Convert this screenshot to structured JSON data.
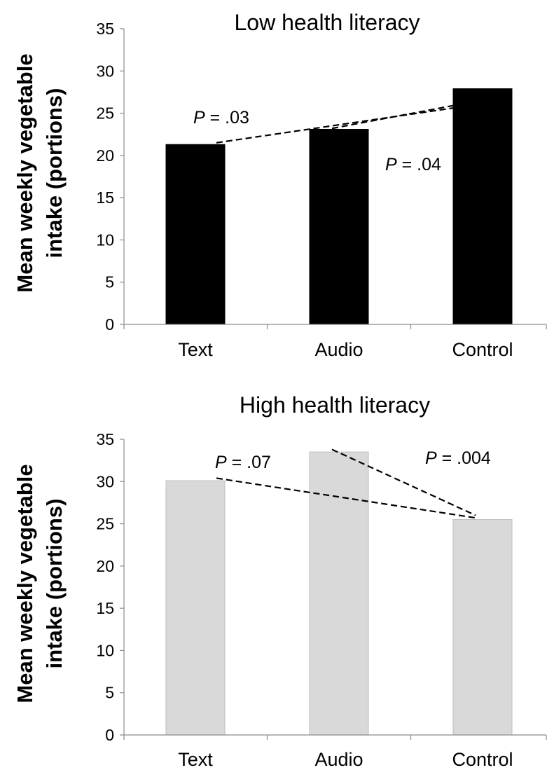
{
  "chart_data": [
    {
      "type": "bar",
      "title": "Low health literacy",
      "ylabel": "Mean weekly vegetable intake (portions)",
      "ylabel_lines": [
        "Mean weekly vegetable",
        "intake (portions)"
      ],
      "categories": [
        "Text",
        "Audio",
        "Control"
      ],
      "values": [
        21.3,
        23.1,
        27.9
      ],
      "ylim": [
        0,
        35
      ],
      "yticks": [
        0,
        5,
        10,
        15,
        20,
        25,
        30,
        35
      ],
      "bar_color": "#000000",
      "bar_edge_color": "#000000",
      "grid": false,
      "annotations": [
        {
          "label_prefix": "P",
          "label_value": " = .03",
          "from_category": "Text",
          "from_value": 21.5,
          "to_category": "Control",
          "to_value": 26.0
        },
        {
          "label_prefix": "P",
          "label_value": " = .04",
          "from_category": "Audio",
          "from_value": 23.2,
          "to_category": "Control",
          "to_value": 26.4
        }
      ]
    },
    {
      "type": "bar",
      "title": "High health literacy",
      "ylabel": "Mean weekly vegetable intake (portions)",
      "ylabel_lines": [
        "Mean weekly vegetable",
        "intake (portions)"
      ],
      "categories": [
        "Text",
        "Audio",
        "Control"
      ],
      "values": [
        30.1,
        33.5,
        25.5
      ],
      "ylim": [
        0,
        35
      ],
      "yticks": [
        0,
        5,
        10,
        15,
        20,
        25,
        30,
        35
      ],
      "bar_color": "#d9d9d9",
      "bar_edge_color": "#bdbdbd",
      "grid": false,
      "annotations": [
        {
          "label_prefix": "P",
          "label_value": " = .07",
          "from_category": "Text",
          "from_value": 30.4,
          "to_category": "Control",
          "to_value": 25.7
        },
        {
          "label_prefix": "P",
          "label_value": " = .004",
          "from_category": "Audio",
          "from_value": 33.8,
          "to_category": "Control",
          "to_value": 26.0
        }
      ]
    }
  ]
}
